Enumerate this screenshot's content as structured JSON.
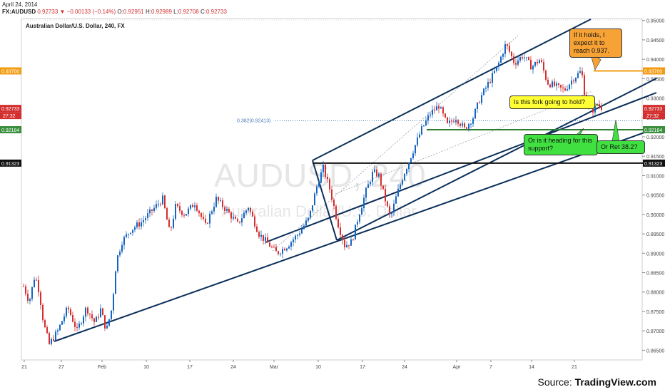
{
  "header": {
    "date": "April 24, 2014",
    "symbol": "FX:AUDUSD",
    "last": "0.92733",
    "change": "−0.00133 (−0.14%)",
    "open": "0.92951",
    "high": "0.92989",
    "low": "0.92708",
    "close": "0.92733"
  },
  "chart_data": {
    "type": "candlestick",
    "title": "Australian Dollar/U.S. Dollar, 240, FX",
    "watermark": "AUDUSD, 240",
    "watermark_sub": "Australian Dollar/U.S. Dollar",
    "x_ticks": [
      "21",
      "27",
      "Feb",
      "10",
      "17",
      "24",
      "Mar",
      "10",
      "17",
      "24",
      "Apr",
      "7",
      "14",
      "21"
    ],
    "y_ticks": [
      "0.86500",
      "0.87000",
      "0.87500",
      "0.88000",
      "0.88500",
      "0.89000",
      "0.89500",
      "0.90000",
      "0.90500",
      "0.91000",
      "0.91500",
      "0.92000",
      "0.92500",
      "0.93000",
      "0.93500",
      "0.94000",
      "0.94500",
      "0.95000"
    ],
    "ylim": [
      0.8625,
      0.9505
    ],
    "close_path": [
      {
        "t": 0,
        "p": 0.8815
      },
      {
        "t": 8,
        "p": 0.8775
      },
      {
        "t": 16,
        "p": 0.8845
      },
      {
        "t": 22,
        "p": 0.88
      },
      {
        "t": 28,
        "p": 0.872
      },
      {
        "t": 36,
        "p": 0.8665
      },
      {
        "t": 48,
        "p": 0.87
      },
      {
        "t": 62,
        "p": 0.876
      },
      {
        "t": 75,
        "p": 0.87
      },
      {
        "t": 88,
        "p": 0.876
      },
      {
        "t": 100,
        "p": 0.872
      },
      {
        "t": 108,
        "p": 0.8755
      },
      {
        "t": 116,
        "p": 0.87
      },
      {
        "t": 124,
        "p": 0.876
      },
      {
        "t": 130,
        "p": 0.888
      },
      {
        "t": 138,
        "p": 0.893
      },
      {
        "t": 150,
        "p": 0.896
      },
      {
        "t": 165,
        "p": 0.898
      },
      {
        "t": 180,
        "p": 0.901
      },
      {
        "t": 195,
        "p": 0.904
      },
      {
        "t": 205,
        "p": 0.895
      },
      {
        "t": 213,
        "p": 0.902
      },
      {
        "t": 226,
        "p": 0.9
      },
      {
        "t": 240,
        "p": 0.903
      },
      {
        "t": 255,
        "p": 0.897
      },
      {
        "t": 270,
        "p": 0.904
      },
      {
        "t": 285,
        "p": 0.901
      },
      {
        "t": 300,
        "p": 0.8975
      },
      {
        "t": 315,
        "p": 0.902
      },
      {
        "t": 330,
        "p": 0.895
      },
      {
        "t": 345,
        "p": 0.892
      },
      {
        "t": 355,
        "p": 0.89
      },
      {
        "t": 370,
        "p": 0.892
      },
      {
        "t": 385,
        "p": 0.895
      },
      {
        "t": 400,
        "p": 0.899
      },
      {
        "t": 412,
        "p": 0.908
      },
      {
        "t": 420,
        "p": 0.912
      },
      {
        "t": 430,
        "p": 0.906
      },
      {
        "t": 440,
        "p": 0.898
      },
      {
        "t": 450,
        "p": 0.892
      },
      {
        "t": 460,
        "p": 0.893
      },
      {
        "t": 470,
        "p": 0.9
      },
      {
        "t": 480,
        "p": 0.906
      },
      {
        "t": 490,
        "p": 0.911
      },
      {
        "t": 498,
        "p": 0.91
      },
      {
        "t": 508,
        "p": 0.903
      },
      {
        "t": 514,
        "p": 0.899
      },
      {
        "t": 523,
        "p": 0.905
      },
      {
        "t": 532,
        "p": 0.91
      },
      {
        "t": 545,
        "p": 0.916
      },
      {
        "t": 558,
        "p": 0.922
      },
      {
        "t": 570,
        "p": 0.926
      },
      {
        "t": 582,
        "p": 0.928
      },
      {
        "t": 594,
        "p": 0.923
      },
      {
        "t": 606,
        "p": 0.925
      },
      {
        "t": 618,
        "p": 0.922
      },
      {
        "t": 630,
        "p": 0.925
      },
      {
        "t": 640,
        "p": 0.93
      },
      {
        "t": 652,
        "p": 0.934
      },
      {
        "t": 664,
        "p": 0.938
      },
      {
        "t": 676,
        "p": 0.944
      },
      {
        "t": 688,
        "p": 0.939
      },
      {
        "t": 700,
        "p": 0.941
      },
      {
        "t": 712,
        "p": 0.938
      },
      {
        "t": 724,
        "p": 0.94
      },
      {
        "t": 734,
        "p": 0.934
      },
      {
        "t": 746,
        "p": 0.933
      },
      {
        "t": 758,
        "p": 0.932
      },
      {
        "t": 770,
        "p": 0.935
      },
      {
        "t": 782,
        "p": 0.937
      },
      {
        "t": 788,
        "p": 0.929
      },
      {
        "t": 796,
        "p": 0.9265
      },
      {
        "t": 804,
        "p": 0.9285
      },
      {
        "t": 812,
        "p": 0.9273
      }
    ],
    "levels": [
      {
        "price": 0.937,
        "label": "0.93700",
        "color": "#f39c12",
        "tag_color": "#f39c12"
      },
      {
        "price": 0.92733,
        "label": "0.92733",
        "color": "#d32f2f",
        "tag_color": "#d32f2f",
        "no_line": true
      },
      {
        "price": 0.92184,
        "label": "0.92184",
        "color": "#2e7d32",
        "tag_color": "#388e3c"
      },
      {
        "price": 0.91323,
        "label": "0.91323",
        "color": "#111111",
        "tag_color": "#111111"
      }
    ],
    "countdown_tag": "27:32",
    "fib_label": "0.382(0.92413)",
    "fib_price": 0.92413,
    "annotations": [
      "If it holds, I expect it to reach 0.937.",
      "Is this fork going to hold?",
      "Or is it heading for this support?",
      "Or Ret 38.2?"
    ]
  },
  "footer": {
    "source_label": "Source: ",
    "source_name": "TradingView.com"
  }
}
